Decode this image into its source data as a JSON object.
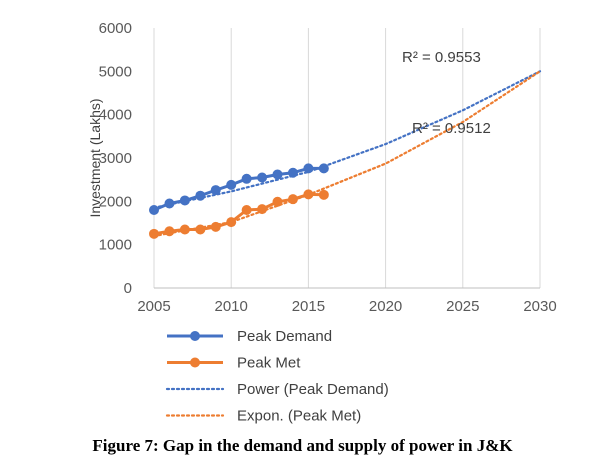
{
  "chart_data": {
    "type": "line",
    "ylabel": "Investment (Lakhs)",
    "xlabel": "",
    "xlim": [
      2005,
      2030
    ],
    "ylim": [
      0,
      6000
    ],
    "x_ticks": [
      2005,
      2010,
      2015,
      2020,
      2025,
      2030
    ],
    "y_ticks": [
      0,
      1000,
      2000,
      3000,
      4000,
      5000,
      6000
    ],
    "grid": "vertical",
    "legend_position": "bottom",
    "series": [
      {
        "name": "Peak Demand",
        "color": "#4472C4",
        "marker": "circle",
        "x": [
          2005,
          2006,
          2007,
          2008,
          2009,
          2010,
          2011,
          2012,
          2013,
          2014,
          2015,
          2016
        ],
        "values": [
          1800,
          1950,
          2020,
          2130,
          2260,
          2380,
          2520,
          2550,
          2620,
          2660,
          2760,
          2760
        ]
      },
      {
        "name": "Peak Met",
        "color": "#ED7D31",
        "marker": "circle",
        "x": [
          2005,
          2006,
          2007,
          2008,
          2009,
          2010,
          2011,
          2012,
          2013,
          2014,
          2015,
          2016
        ],
        "values": [
          1250,
          1310,
          1350,
          1350,
          1410,
          1520,
          1800,
          1820,
          1990,
          2050,
          2160,
          2150
        ]
      }
    ],
    "trendlines": [
      {
        "name": "Power (Peak Demand)",
        "color": "#4472C4",
        "style": "dotted",
        "x": [
          2005,
          2010,
          2015,
          2020,
          2025,
          2030
        ],
        "values": [
          1850,
          2230,
          2680,
          3320,
          4100,
          5000
        ],
        "r2_label": "R² = 0.9553"
      },
      {
        "name": "Expon. (Peak Met)",
        "color": "#ED7D31",
        "style": "dotted",
        "x": [
          2005,
          2010,
          2015,
          2020,
          2025,
          2030
        ],
        "values": [
          1200,
          1520,
          2150,
          2870,
          3830,
          5000
        ],
        "r2_label": "R² = 0.9512"
      }
    ]
  },
  "caption": "Figure 7: Gap in the demand and supply of power in J&K"
}
